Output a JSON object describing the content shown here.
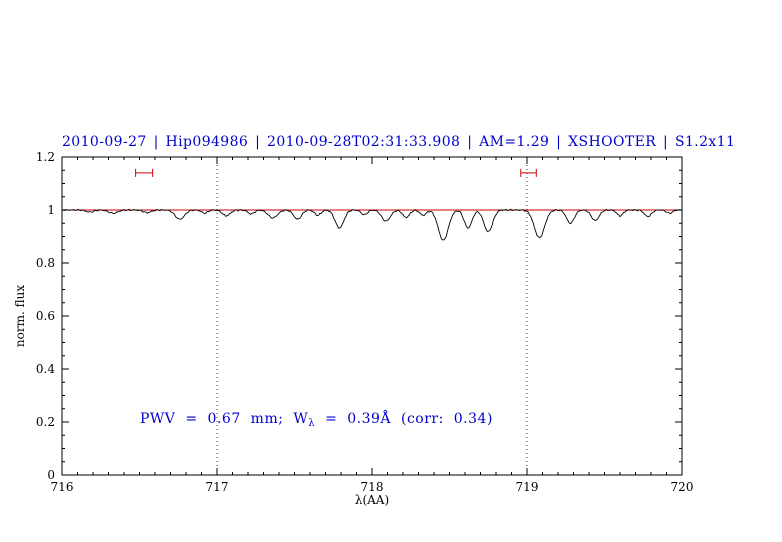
{
  "figure": {
    "background": "#ffffff",
    "title_color": "#0000cc",
    "axis_color": "#000000"
  },
  "annotation": {
    "pre": "PWV = 0.67 mm; W",
    "sub": "λ",
    "post": " = 0.39Å (corr: 0.34)",
    "color": "#0000cc",
    "x_data": 716.52,
    "y_data": 0.21
  },
  "chart_data": {
    "type": "line",
    "title": "2010-09-27 | Hip094986 | 2010-09-28T02:31:33.908 | AM=1.29 | XSHOOTER | S1.2x11",
    "xlabel": "λ(AA)",
    "ylabel": "norm. flux",
    "xlim": [
      716,
      720
    ],
    "ylim": [
      0,
      1.2
    ],
    "xticks": [
      716,
      717,
      718,
      719,
      720
    ],
    "xtick_labels": [
      "716",
      "717",
      "718",
      "719",
      "720"
    ],
    "x_minor_step": 0.1,
    "yticks": [
      0,
      0.2,
      0.4,
      0.6,
      0.8,
      1.0,
      1.2
    ],
    "ytick_labels": [
      "0",
      "0.2",
      "0.4",
      "0.6",
      "0.8",
      "1",
      "1.2"
    ],
    "y_minor_step": 0.05,
    "grid": "off",
    "grid_vlines_dotted": [
      717,
      719
    ],
    "continuum_y": 1.0,
    "continuum_color": "#cc0000",
    "line_color": "#000000",
    "marker_color": "#cc0000",
    "noise_amplitude": 0.0035,
    "sample_step": 0.008,
    "absorption_lines": [
      {
        "center": 716.18,
        "depth": 0.008,
        "sigma": 0.025
      },
      {
        "center": 716.33,
        "depth": 0.012,
        "sigma": 0.03
      },
      {
        "center": 716.55,
        "depth": 0.01,
        "sigma": 0.025
      },
      {
        "center": 716.76,
        "depth": 0.035,
        "sigma": 0.03
      },
      {
        "center": 716.92,
        "depth": 0.012,
        "sigma": 0.02
      },
      {
        "center": 717.06,
        "depth": 0.022,
        "sigma": 0.025
      },
      {
        "center": 717.22,
        "depth": 0.015,
        "sigma": 0.02
      },
      {
        "center": 717.36,
        "depth": 0.03,
        "sigma": 0.03
      },
      {
        "center": 717.52,
        "depth": 0.035,
        "sigma": 0.025
      },
      {
        "center": 717.65,
        "depth": 0.02,
        "sigma": 0.02
      },
      {
        "center": 717.79,
        "depth": 0.068,
        "sigma": 0.028
      },
      {
        "center": 717.95,
        "depth": 0.018,
        "sigma": 0.02
      },
      {
        "center": 718.09,
        "depth": 0.042,
        "sigma": 0.028
      },
      {
        "center": 718.22,
        "depth": 0.028,
        "sigma": 0.022
      },
      {
        "center": 718.33,
        "depth": 0.02,
        "sigma": 0.02
      },
      {
        "center": 718.46,
        "depth": 0.115,
        "sigma": 0.032
      },
      {
        "center": 718.62,
        "depth": 0.068,
        "sigma": 0.025
      },
      {
        "center": 718.75,
        "depth": 0.082,
        "sigma": 0.028
      },
      {
        "center": 719.08,
        "depth": 0.105,
        "sigma": 0.033
      },
      {
        "center": 719.28,
        "depth": 0.05,
        "sigma": 0.025
      },
      {
        "center": 719.44,
        "depth": 0.04,
        "sigma": 0.025
      },
      {
        "center": 719.6,
        "depth": 0.022,
        "sigma": 0.02
      },
      {
        "center": 719.78,
        "depth": 0.025,
        "sigma": 0.022
      },
      {
        "center": 719.92,
        "depth": 0.012,
        "sigma": 0.02
      }
    ],
    "red_markers": [
      {
        "x_center": 716.53,
        "half_width": 0.055,
        "y": 1.14
      },
      {
        "x_center": 719.01,
        "half_width": 0.05,
        "y": 1.14
      }
    ],
    "annotation_text": "PWV = 0.67 mm; W_λ = 0.39Å (corr: 0.34)"
  }
}
